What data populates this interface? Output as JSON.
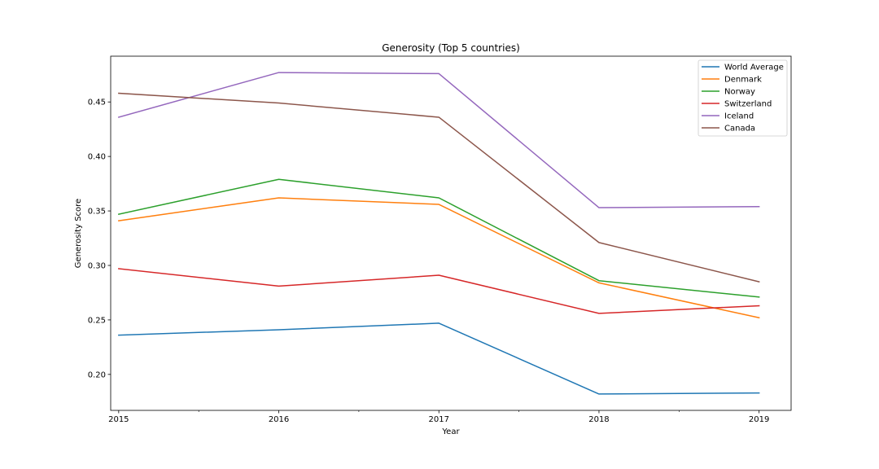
{
  "chart_data": {
    "type": "line",
    "title": "Generosity (Top 5 countries)",
    "xlabel": "Year",
    "ylabel": "Generosity Score",
    "x": [
      2015,
      2016,
      2017,
      2018,
      2019
    ],
    "x_tick_labels": [
      "2015",
      "2016",
      "2017",
      "2018",
      "2019"
    ],
    "xlim": [
      2014.95,
      2019.2
    ],
    "ylim": [
      0.167,
      0.492
    ],
    "y_ticks": [
      0.2,
      0.25,
      0.3,
      0.35,
      0.4,
      0.45
    ],
    "y_tick_labels": [
      "0.20",
      "0.25",
      "0.30",
      "0.35",
      "0.40",
      "0.45"
    ],
    "grid": false,
    "legend_position": "top-right",
    "series": [
      {
        "name": "World Average",
        "color": "#1f77b4",
        "values": [
          0.236,
          0.241,
          0.247,
          0.182,
          0.183
        ]
      },
      {
        "name": "Denmark",
        "color": "#ff7f0e",
        "values": [
          0.341,
          0.362,
          0.356,
          0.284,
          0.252
        ]
      },
      {
        "name": "Norway",
        "color": "#2ca02c",
        "values": [
          0.347,
          0.379,
          0.362,
          0.286,
          0.271
        ]
      },
      {
        "name": "Switzerland",
        "color": "#d62728",
        "values": [
          0.297,
          0.281,
          0.291,
          0.256,
          0.263
        ]
      },
      {
        "name": "Iceland",
        "color": "#9467bd",
        "values": [
          0.436,
          0.477,
          0.476,
          0.353,
          0.354
        ]
      },
      {
        "name": "Canada",
        "color": "#8c564b",
        "values": [
          0.458,
          0.449,
          0.436,
          0.321,
          0.285
        ]
      }
    ]
  }
}
